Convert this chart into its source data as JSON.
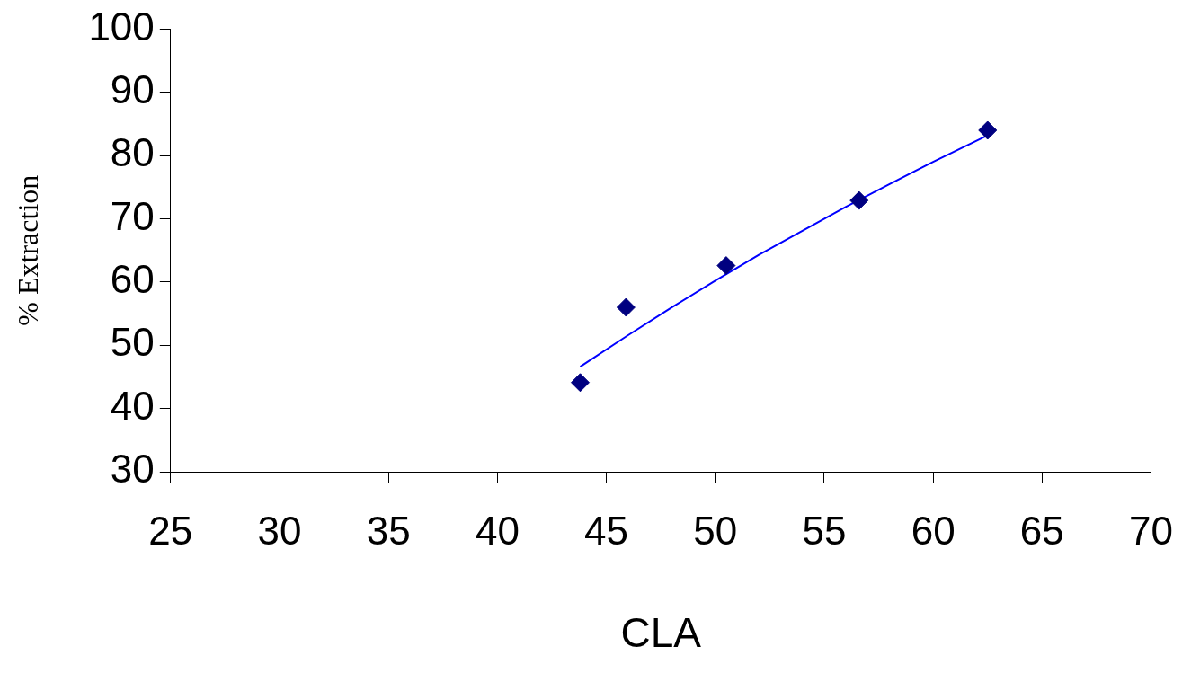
{
  "chart_data": {
    "type": "scatter",
    "xlabel": "CLA",
    "ylabel": "% Extraction",
    "xlim": [
      25,
      70
    ],
    "xticks": [
      25,
      30,
      35,
      40,
      45,
      50,
      55,
      60,
      65,
      70
    ],
    "ylim": [
      30,
      100
    ],
    "yticks": [
      30,
      40,
      50,
      60,
      70,
      80,
      90,
      100
    ],
    "grid": false,
    "legend": false,
    "marker": "diamond",
    "series": [
      {
        "type": "scatter",
        "color": "#000080",
        "x": [
          43.8,
          45.9,
          50.5,
          56.6,
          62.5
        ],
        "values": [
          44.1,
          56,
          62.6,
          72.9,
          84
        ]
      },
      {
        "type": "line",
        "color": "#0000ff",
        "marker": "none",
        "line_style": "solid",
        "x": [
          43.8,
          46,
          48,
          50,
          52,
          54,
          56,
          58,
          60,
          62.5
        ],
        "values": [
          46.6,
          51.6,
          56,
          60.2,
          64.3,
          68.1,
          71.9,
          75.5,
          79,
          83.2
        ]
      }
    ]
  }
}
